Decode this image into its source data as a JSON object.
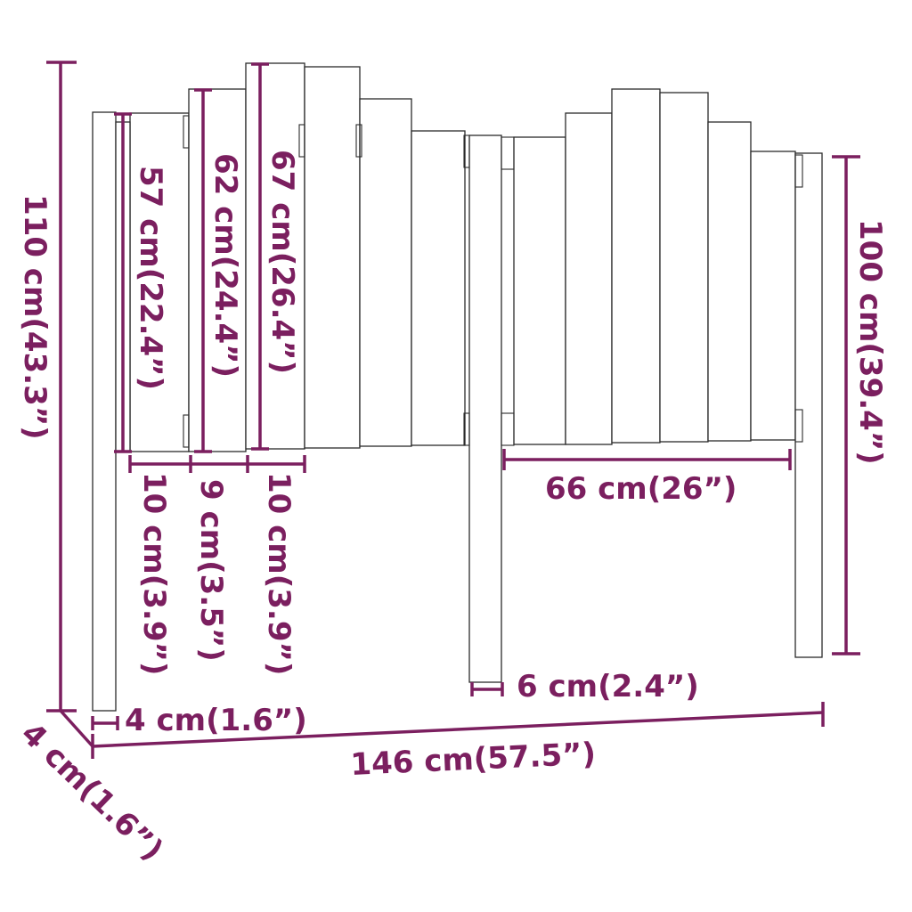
{
  "diagram": {
    "subject": "headboard-dimensions",
    "dimension_color": "#7b1f5f",
    "outline_color": "#2b2b2b",
    "labels": {
      "overall_height": "110 cm(43.3”)",
      "board_height_57": "57 cm(22.4”)",
      "board_height_62": "62 cm(24.4”)",
      "board_height_67": "67 cm(26.4”)",
      "right_height": "100 cm(39.4”)",
      "board_width_10a": "10 cm(3.9”)",
      "board_width_9": "9 cm(3.5”)",
      "board_width_10b": "10 cm(3.9”)",
      "right_span": "66 cm(26”)",
      "leg_width": "6 cm(2.4”)",
      "post_width": "4 cm(1.6”)",
      "overall_width": "146 cm(57.5”)",
      "depth": "4 cm(1.6”)"
    }
  }
}
